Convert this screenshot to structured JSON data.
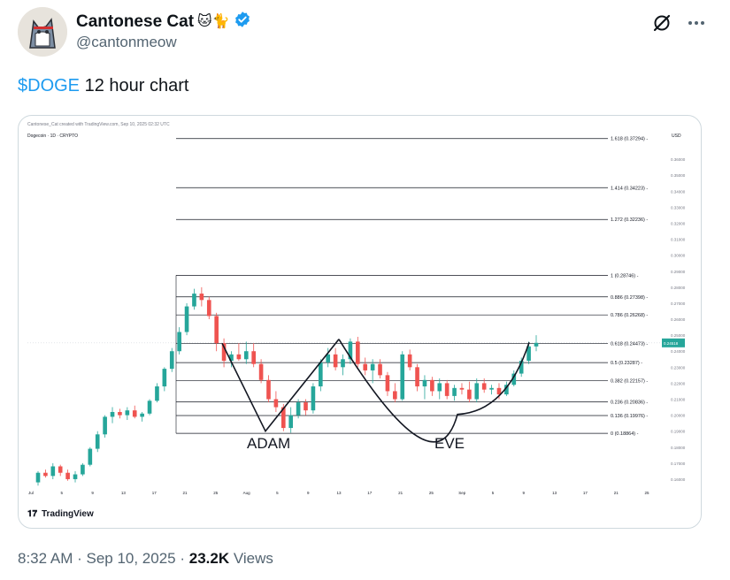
{
  "author": {
    "display_name": "Cantonese Cat",
    "emojis": "🐱🐈",
    "handle": "@cantonmeow",
    "avatar_icon": "cat-avatar-icon",
    "verified_color": "#1d9bf0"
  },
  "header_actions": {
    "grok_icon": "grok-icon",
    "more_icon": "more-icon"
  },
  "tweet": {
    "cashtag": "$DOGE",
    "text": " 12 hour chart"
  },
  "footer": {
    "time": "8:32 AM",
    "sep1": " · ",
    "date": "Sep 10, 2025",
    "sep2": " · ",
    "views_count": "23.2K",
    "views_label": " Views"
  },
  "chart_data": {
    "type": "candlestick",
    "header_text": "Cantonese_Cat created with TradingView.com, Sep 10, 2025 02:32 UTC",
    "symbol_text": "Dogecoin · 1D · CRYPTO",
    "currency": "USD",
    "watermark": "TradingView",
    "x_ticks": [
      "Jul",
      "5",
      "9",
      "13",
      "17",
      "21",
      "25",
      "Aug",
      "5",
      "9",
      "13",
      "17",
      "21",
      "25",
      "Sep",
      "5",
      "9",
      "13",
      "17",
      "21",
      "25"
    ],
    "y_ticks": [
      "0.36000",
      "0.35000",
      "0.34000",
      "0.33000",
      "0.32000",
      "0.31000",
      "0.30000",
      "0.29000",
      "0.28000",
      "0.27000",
      "0.26000",
      "0.25000",
      "0.24000",
      "0.23000",
      "0.22000",
      "0.21000",
      "0.20000",
      "0.19000",
      "0.18000",
      "0.17000",
      "0.16000"
    ],
    "ylim": [
      0.155,
      0.375
    ],
    "last_price": "0.24518",
    "fib_levels": [
      {
        "ratio": "1.618",
        "value": 0.37294,
        "label": "1.618 (0.37294)"
      },
      {
        "ratio": "1.414",
        "value": 0.34223,
        "label": "1.414 (0.34223)"
      },
      {
        "ratio": "1.272",
        "value": 0.32236,
        "label": "1.272 (0.32236)"
      },
      {
        "ratio": "1",
        "value": 0.28746,
        "label": "1 (0.28746)"
      },
      {
        "ratio": "0.886",
        "value": 0.27398,
        "label": "0.886 (0.27398)"
      },
      {
        "ratio": "0.786",
        "value": 0.26268,
        "label": "0.786 (0.26268)"
      },
      {
        "ratio": "0.618",
        "value": 0.24473,
        "label": "0.618 (0.24473)"
      },
      {
        "ratio": "0.5",
        "value": 0.23287,
        "label": "0.5 (0.23287)"
      },
      {
        "ratio": "0.382",
        "value": 0.22157,
        "label": "0.382 (0.22157)"
      },
      {
        "ratio": "0.236",
        "value": 0.20836,
        "label": "0.236 (0.20836)"
      },
      {
        "ratio": "0.136",
        "value": 0.19976,
        "label": "0.136 (0.19976)"
      },
      {
        "ratio": "0",
        "value": 0.18864,
        "label": "0 (0.18864)"
      }
    ],
    "annotations": {
      "adam_label": "ADAM",
      "eve_label": "EVE",
      "adam_points": [
        [
          0.0,
          0.245
        ],
        [
          0.5,
          0.19
        ],
        [
          1.0,
          0.246
        ]
      ],
      "eve_points": [
        [
          0.0,
          0.246
        ],
        [
          0.5,
          0.2
        ],
        [
          1.0,
          0.245
        ]
      ]
    },
    "candles": [
      [
        0.158,
        0.165,
        0.156,
        0.164
      ],
      [
        0.164,
        0.166,
        0.161,
        0.162
      ],
      [
        0.162,
        0.17,
        0.16,
        0.168
      ],
      [
        0.168,
        0.169,
        0.162,
        0.164
      ],
      [
        0.164,
        0.166,
        0.159,
        0.16
      ],
      [
        0.16,
        0.165,
        0.158,
        0.163
      ],
      [
        0.163,
        0.17,
        0.162,
        0.169
      ],
      [
        0.169,
        0.18,
        0.168,
        0.179
      ],
      [
        0.179,
        0.19,
        0.177,
        0.188
      ],
      [
        0.188,
        0.2,
        0.186,
        0.199
      ],
      [
        0.199,
        0.205,
        0.195,
        0.202
      ],
      [
        0.202,
        0.204,
        0.198,
        0.2
      ],
      [
        0.2,
        0.205,
        0.197,
        0.203
      ],
      [
        0.203,
        0.206,
        0.198,
        0.199
      ],
      [
        0.199,
        0.202,
        0.196,
        0.201
      ],
      [
        0.201,
        0.21,
        0.2,
        0.209
      ],
      [
        0.209,
        0.22,
        0.208,
        0.218
      ],
      [
        0.218,
        0.23,
        0.215,
        0.229
      ],
      [
        0.229,
        0.242,
        0.227,
        0.24
      ],
      [
        0.24,
        0.255,
        0.238,
        0.252
      ],
      [
        0.252,
        0.27,
        0.25,
        0.268
      ],
      [
        0.268,
        0.279,
        0.266,
        0.276
      ],
      [
        0.276,
        0.28,
        0.268,
        0.272
      ],
      [
        0.272,
        0.274,
        0.26,
        0.262
      ],
      [
        0.262,
        0.264,
        0.24,
        0.245
      ],
      [
        0.245,
        0.248,
        0.23,
        0.234
      ],
      [
        0.234,
        0.24,
        0.23,
        0.238
      ],
      [
        0.238,
        0.245,
        0.234,
        0.235
      ],
      [
        0.235,
        0.246,
        0.232,
        0.24
      ],
      [
        0.24,
        0.245,
        0.23,
        0.232
      ],
      [
        0.232,
        0.235,
        0.22,
        0.222
      ],
      [
        0.222,
        0.225,
        0.208,
        0.21
      ],
      [
        0.21,
        0.215,
        0.202,
        0.205
      ],
      [
        0.205,
        0.207,
        0.19,
        0.192
      ],
      [
        0.192,
        0.205,
        0.189,
        0.2
      ],
      [
        0.2,
        0.21,
        0.198,
        0.208
      ],
      [
        0.208,
        0.21,
        0.2,
        0.203
      ],
      [
        0.203,
        0.22,
        0.201,
        0.218
      ],
      [
        0.218,
        0.235,
        0.215,
        0.233
      ],
      [
        0.233,
        0.242,
        0.23,
        0.238
      ],
      [
        0.238,
        0.242,
        0.228,
        0.23
      ],
      [
        0.23,
        0.238,
        0.225,
        0.235
      ],
      [
        0.235,
        0.248,
        0.232,
        0.246
      ],
      [
        0.246,
        0.249,
        0.23,
        0.232
      ],
      [
        0.232,
        0.236,
        0.225,
        0.228
      ],
      [
        0.228,
        0.235,
        0.22,
        0.232
      ],
      [
        0.232,
        0.235,
        0.223,
        0.225
      ],
      [
        0.225,
        0.227,
        0.212,
        0.215
      ],
      [
        0.215,
        0.22,
        0.208,
        0.21
      ],
      [
        0.21,
        0.24,
        0.209,
        0.238
      ],
      [
        0.238,
        0.241,
        0.228,
        0.23
      ],
      [
        0.23,
        0.232,
        0.215,
        0.218
      ],
      [
        0.218,
        0.225,
        0.21,
        0.222
      ],
      [
        0.222,
        0.224,
        0.212,
        0.215
      ],
      [
        0.215,
        0.223,
        0.21,
        0.22
      ],
      [
        0.22,
        0.222,
        0.21,
        0.212
      ],
      [
        0.212,
        0.219,
        0.209,
        0.217
      ],
      [
        0.217,
        0.22,
        0.213,
        0.216
      ],
      [
        0.216,
        0.221,
        0.208,
        0.21
      ],
      [
        0.21,
        0.223,
        0.208,
        0.22
      ],
      [
        0.22,
        0.223,
        0.214,
        0.216
      ],
      [
        0.216,
        0.219,
        0.213,
        0.217
      ],
      [
        0.217,
        0.22,
        0.21,
        0.213
      ],
      [
        0.213,
        0.221,
        0.212,
        0.219
      ],
      [
        0.219,
        0.228,
        0.218,
        0.226
      ],
      [
        0.226,
        0.236,
        0.224,
        0.234
      ],
      [
        0.234,
        0.246,
        0.232,
        0.243
      ],
      [
        0.243,
        0.25,
        0.24,
        0.2452
      ]
    ]
  }
}
